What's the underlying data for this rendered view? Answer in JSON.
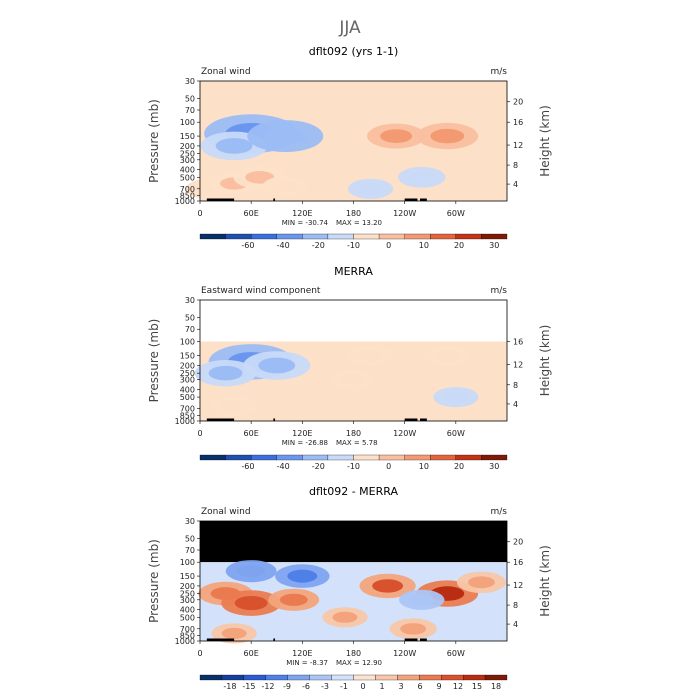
{
  "page_title": "JJA",
  "chart_data": [
    {
      "type": "heatmap",
      "title": "dflt092 (yrs 1-1)",
      "field_label": "Zonal wind",
      "units": "m/s",
      "ylabel": "Pressure (mb)",
      "ylabel_right": "Height (km)",
      "x_ticks": [
        "0",
        "60E",
        "120E",
        "180",
        "120W",
        "60W"
      ],
      "y_ticks": [
        "30",
        "50",
        "70",
        "100",
        "150",
        "200",
        "250",
        "300",
        "400",
        "500",
        "700",
        "850",
        "1000"
      ],
      "height_ticks": [
        "20",
        "16",
        "12",
        "8",
        "4"
      ],
      "min_text": "MIN = -30.74",
      "max_text": "MAX = 13.20",
      "colorbar_labels": [
        "-60",
        "-40",
        "-20",
        "-10",
        "0",
        "10",
        "20",
        "30"
      ],
      "data_top_pressure": 30,
      "cells": [
        {
          "lon": 10,
          "p": 700,
          "v": 3
        },
        {
          "lon": 40,
          "p": 600,
          "v": 6
        },
        {
          "lon": 70,
          "p": 500,
          "v": 7
        },
        {
          "lon": 100,
          "p": 650,
          "v": 3
        },
        {
          "lon": 60,
          "p": 140,
          "v": -30
        },
        {
          "lon": 40,
          "p": 200,
          "v": -15
        },
        {
          "lon": 100,
          "p": 150,
          "v": -20
        },
        {
          "lon": 230,
          "p": 150,
          "v": 10
        },
        {
          "lon": 290,
          "p": 150,
          "v": 12
        },
        {
          "lon": 260,
          "p": 500,
          "v": -4
        },
        {
          "lon": 200,
          "p": 700,
          "v": -3
        }
      ]
    },
    {
      "type": "heatmap",
      "title": "MERRA",
      "field_label": "Eastward wind component",
      "units": "m/s",
      "ylabel": "Pressure (mb)",
      "ylabel_right": "Height (km)",
      "x_ticks": [
        "0",
        "60E",
        "120E",
        "180",
        "120W",
        "60W"
      ],
      "y_ticks": [
        "30",
        "50",
        "70",
        "100",
        "150",
        "200",
        "250",
        "300",
        "400",
        "500",
        "700",
        "850",
        "1000"
      ],
      "height_ticks": [
        "16",
        "12",
        "8",
        "4"
      ],
      "min_text": "MIN = -26.88",
      "max_text": "MAX = 5.78",
      "colorbar_labels": [
        "-60",
        "-40",
        "-20",
        "-10",
        "0",
        "10",
        "20",
        "30"
      ],
      "data_top_pressure": 100,
      "cells": [
        {
          "lon": 60,
          "p": 180,
          "v": -25
        },
        {
          "lon": 30,
          "p": 250,
          "v": -12
        },
        {
          "lon": 90,
          "p": 200,
          "v": -15
        },
        {
          "lon": 40,
          "p": 650,
          "v": 4
        },
        {
          "lon": 200,
          "p": 150,
          "v": 3
        },
        {
          "lon": 290,
          "p": 150,
          "v": 4
        },
        {
          "lon": 180,
          "p": 300,
          "v": 2
        },
        {
          "lon": 300,
          "p": 500,
          "v": -3
        }
      ]
    },
    {
      "type": "heatmap",
      "title": "dflt092 - MERRA",
      "field_label": "Zonal wind",
      "units": "m/s",
      "ylabel": "Pressure (mb)",
      "ylabel_right": "Height (km)",
      "x_ticks": [
        "0",
        "60E",
        "120E",
        "180",
        "120W",
        "60W"
      ],
      "y_ticks": [
        "30",
        "50",
        "70",
        "100",
        "150",
        "200",
        "250",
        "300",
        "400",
        "500",
        "700",
        "850",
        "1000"
      ],
      "height_ticks": [
        "20",
        "16",
        "12",
        "8",
        "4"
      ],
      "min_text": "MIN = -8.37",
      "max_text": "MAX = 12.90",
      "colorbar_labels": [
        "-18",
        "-15",
        "-12",
        "-9",
        "-6",
        "-3",
        "-1",
        "0",
        "1",
        "3",
        "6",
        "9",
        "12",
        "15",
        "18"
      ],
      "data_top_pressure": 100,
      "cells": [
        {
          "lon": 30,
          "p": 250,
          "v": 8
        },
        {
          "lon": 60,
          "p": 330,
          "v": 11
        },
        {
          "lon": 110,
          "p": 300,
          "v": 6
        },
        {
          "lon": 60,
          "p": 130,
          "v": -6
        },
        {
          "lon": 120,
          "p": 150,
          "v": -8
        },
        {
          "lon": 220,
          "p": 200,
          "v": 9
        },
        {
          "lon": 290,
          "p": 250,
          "v": 12
        },
        {
          "lon": 260,
          "p": 300,
          "v": -3
        },
        {
          "lon": 250,
          "p": 700,
          "v": 4
        },
        {
          "lon": 40,
          "p": 800,
          "v": 3
        },
        {
          "lon": 170,
          "p": 500,
          "v": 3
        },
        {
          "lon": 330,
          "p": 180,
          "v": 5
        }
      ]
    }
  ]
}
